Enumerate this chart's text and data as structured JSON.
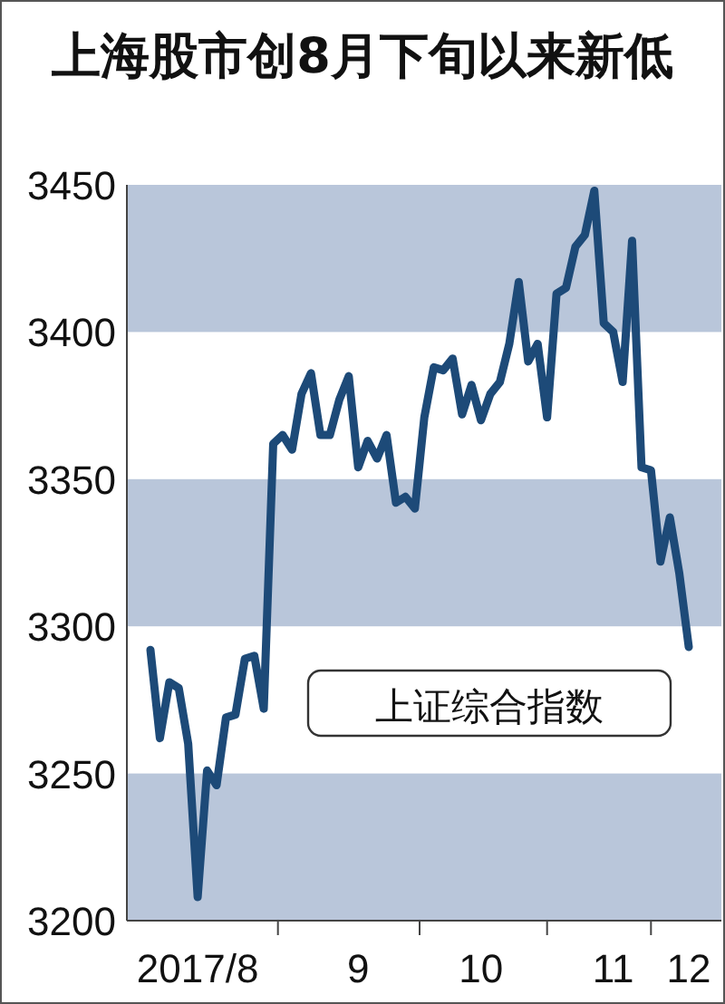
{
  "chart_data": {
    "type": "line",
    "title": "上海股市创8月下旬以来新低",
    "annotations": [
      "上证综合指数"
    ],
    "categories": [
      null,
      null,
      null,
      null,
      null,
      "2017/8",
      null,
      null,
      null,
      null,
      null,
      null,
      null,
      null,
      null,
      null,
      null,
      null,
      null,
      null,
      null,
      null,
      "9",
      null,
      null,
      null,
      null,
      null,
      null,
      null,
      null,
      null,
      null,
      null,
      null,
      "10",
      null,
      null,
      null,
      null,
      null,
      null,
      null,
      null,
      null,
      null,
      null,
      null,
      null,
      "11",
      null,
      null,
      null,
      null,
      null,
      null,
      null,
      "12"
    ],
    "series": [
      {
        "color": "#1d4a78",
        "values": [
          3292,
          3262,
          3281,
          3279,
          3260,
          3208,
          3251,
          3246,
          3269,
          3270,
          3289,
          3290,
          3272,
          3362,
          3365,
          3360,
          3379,
          3386,
          3365,
          3365,
          3377,
          3385,
          3354,
          3363,
          3357,
          3365,
          3342,
          3344,
          3340,
          3371,
          3388,
          3387,
          3391,
          3372,
          3382,
          3370,
          3379,
          3383,
          3396,
          3417,
          3390,
          3396,
          3371,
          3413,
          3415,
          3429,
          3433,
          3448,
          3403,
          3400,
          3383,
          3431,
          3354,
          3353,
          3322,
          3337,
          3318,
          3293
        ]
      }
    ],
    "ylim": [
      3200,
      3450
    ],
    "yticks": [
      3200,
      3250,
      3300,
      3350,
      3400,
      3450
    ],
    "bands": [
      {
        "axis": "y",
        "from": 3400,
        "to": 3450,
        "color": "#b9c6da"
      },
      {
        "axis": "y",
        "from": 3300,
        "to": 3350,
        "color": "#b9c6da"
      },
      {
        "axis": "y",
        "from": 3200,
        "to": 3250,
        "color": "#b9c6da"
      }
    ],
    "line_style": "solid",
    "marker": "none"
  }
}
